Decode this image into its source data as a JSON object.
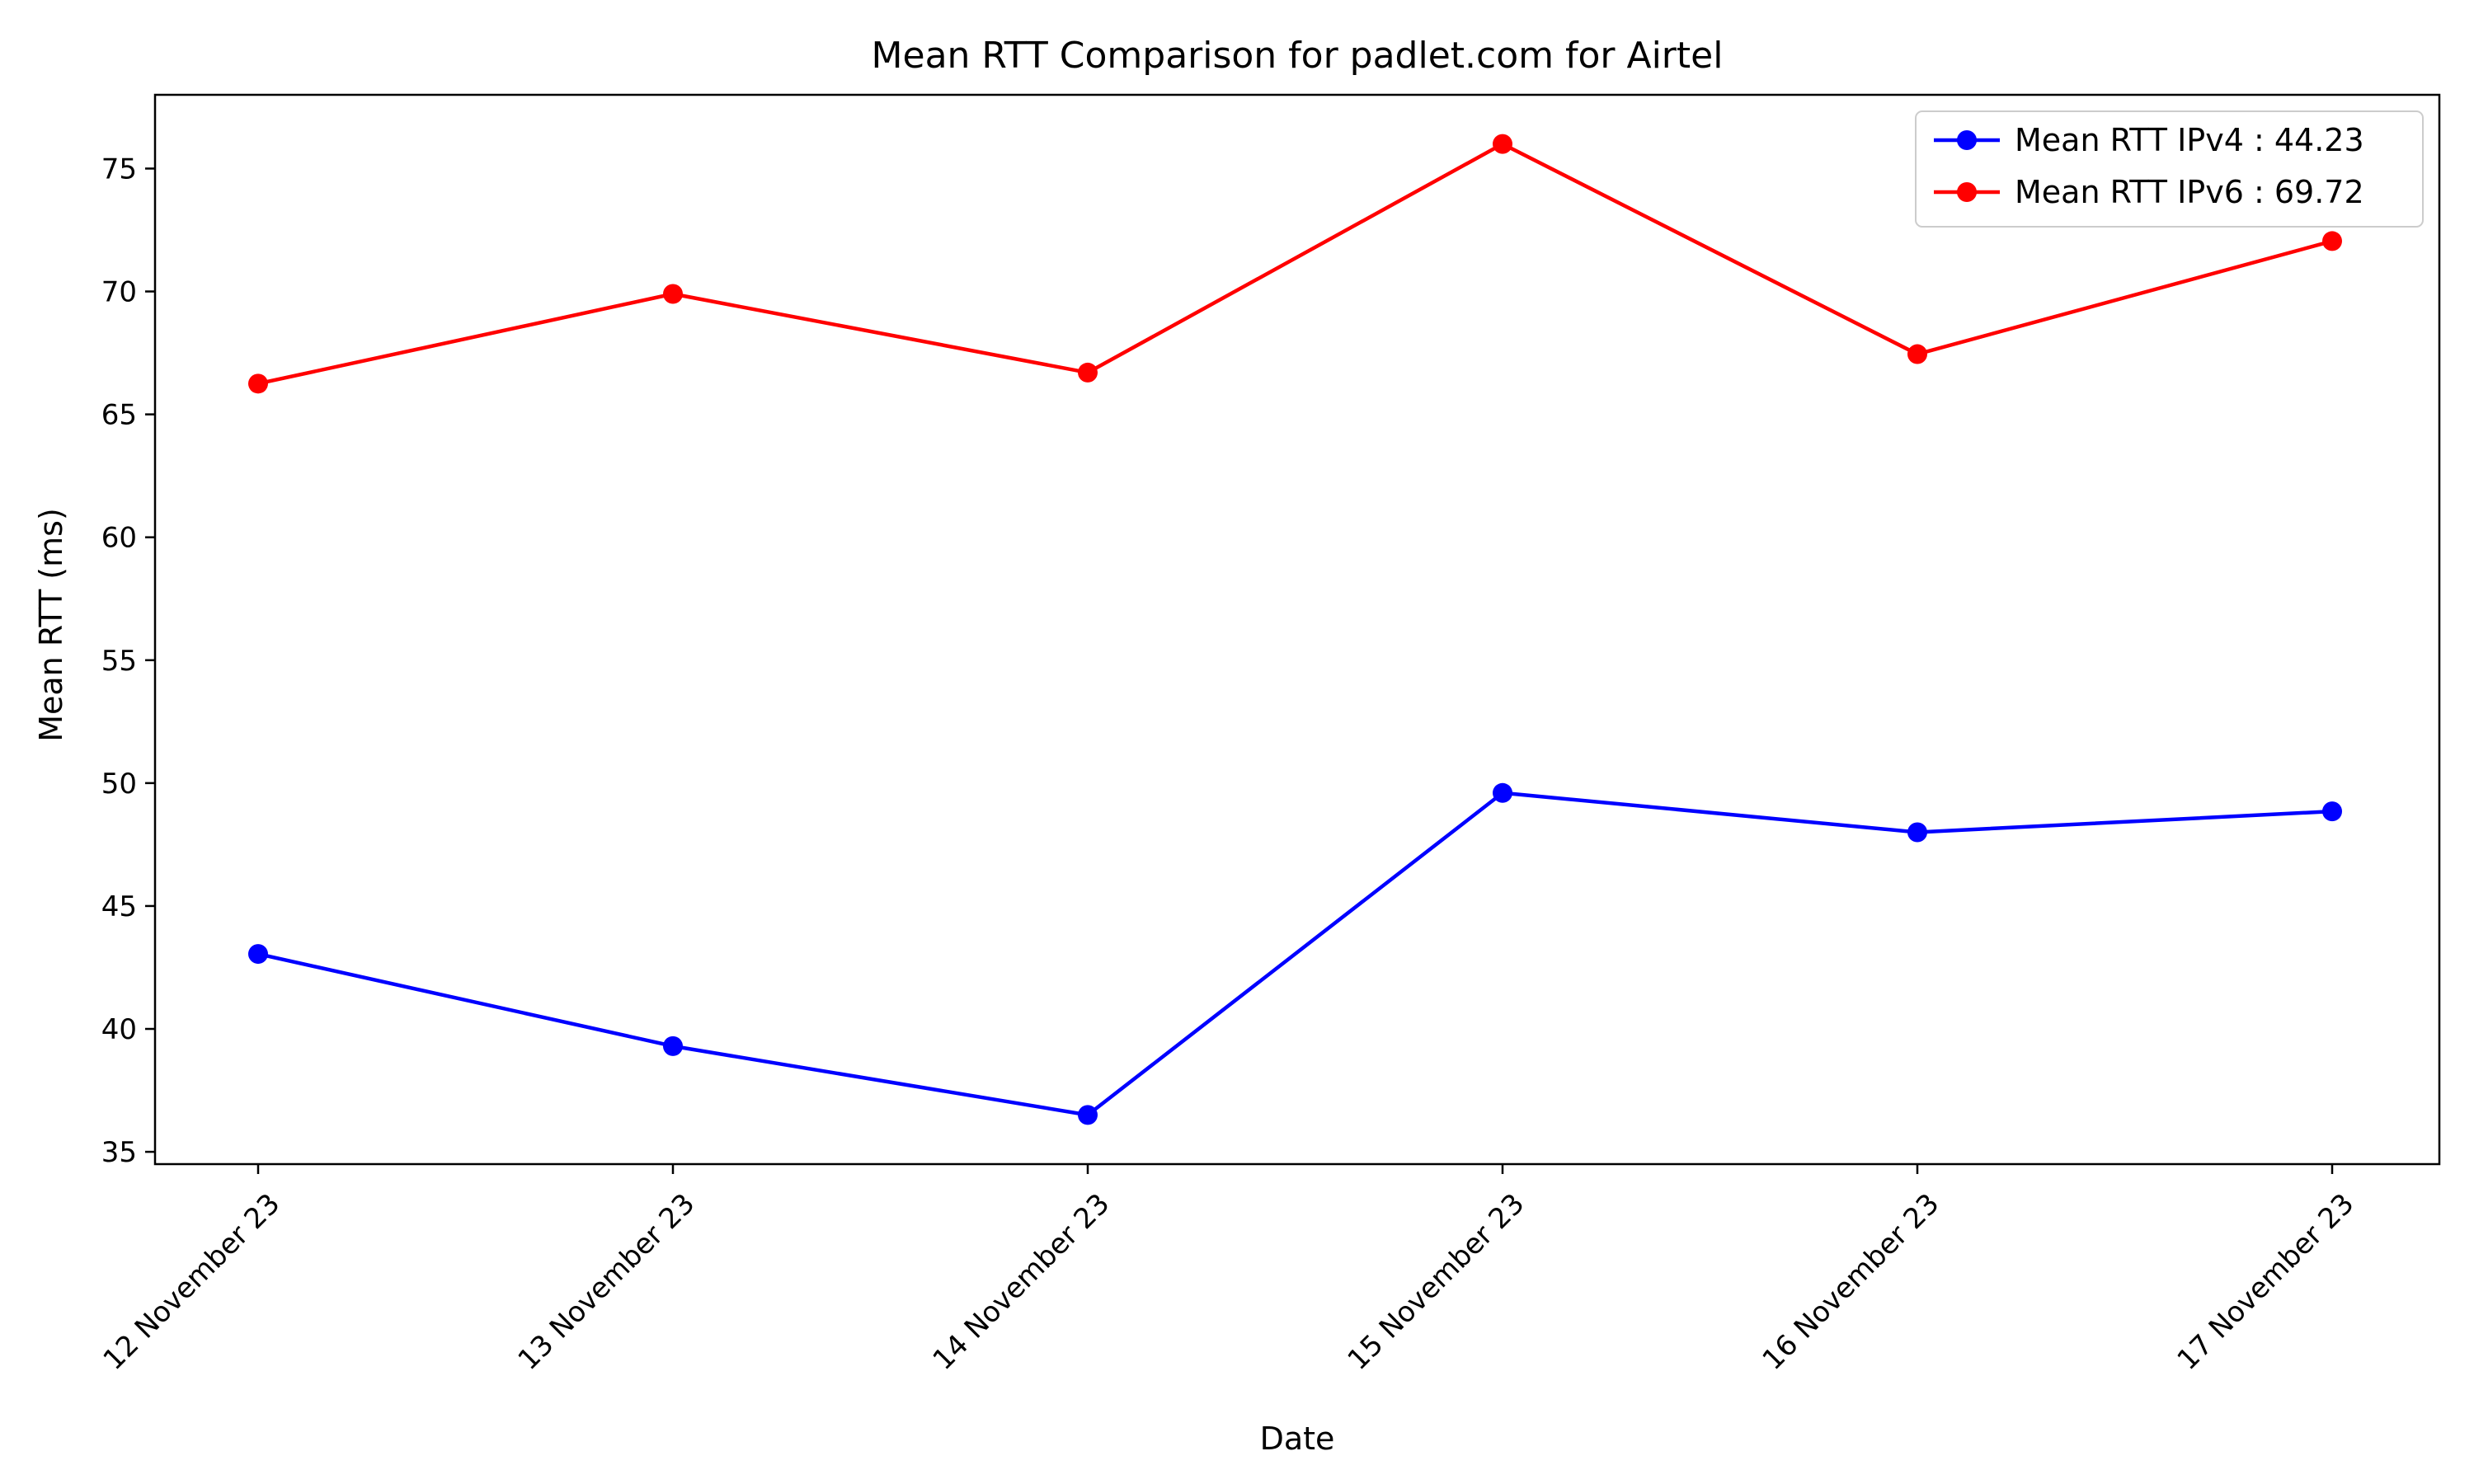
{
  "chart_data": {
    "type": "line",
    "title": "Mean RTT Comparison for padlet.com for Airtel",
    "xlabel": "Date",
    "ylabel": "Mean RTT (ms)",
    "categories": [
      "12 November 23",
      "13 November 23",
      "14 November 23",
      "15 November 23",
      "16 November 23",
      "17 November 23"
    ],
    "yticks": [
      35,
      40,
      45,
      50,
      55,
      60,
      65,
      70,
      75
    ],
    "ylim": [
      34.5,
      78.0
    ],
    "grid": false,
    "legend_position": "top-right",
    "series": [
      {
        "name": "Mean RTT IPv4 : 44.23",
        "color": "#0000ff",
        "marker": "circle",
        "values": [
          43.05,
          39.3,
          36.5,
          49.6,
          48.0,
          48.85
        ]
      },
      {
        "name": "Mean RTT IPv6 : 69.72",
        "color": "#ff0000",
        "marker": "circle",
        "values": [
          66.25,
          69.9,
          66.7,
          76.0,
          67.45,
          72.05
        ]
      }
    ]
  }
}
